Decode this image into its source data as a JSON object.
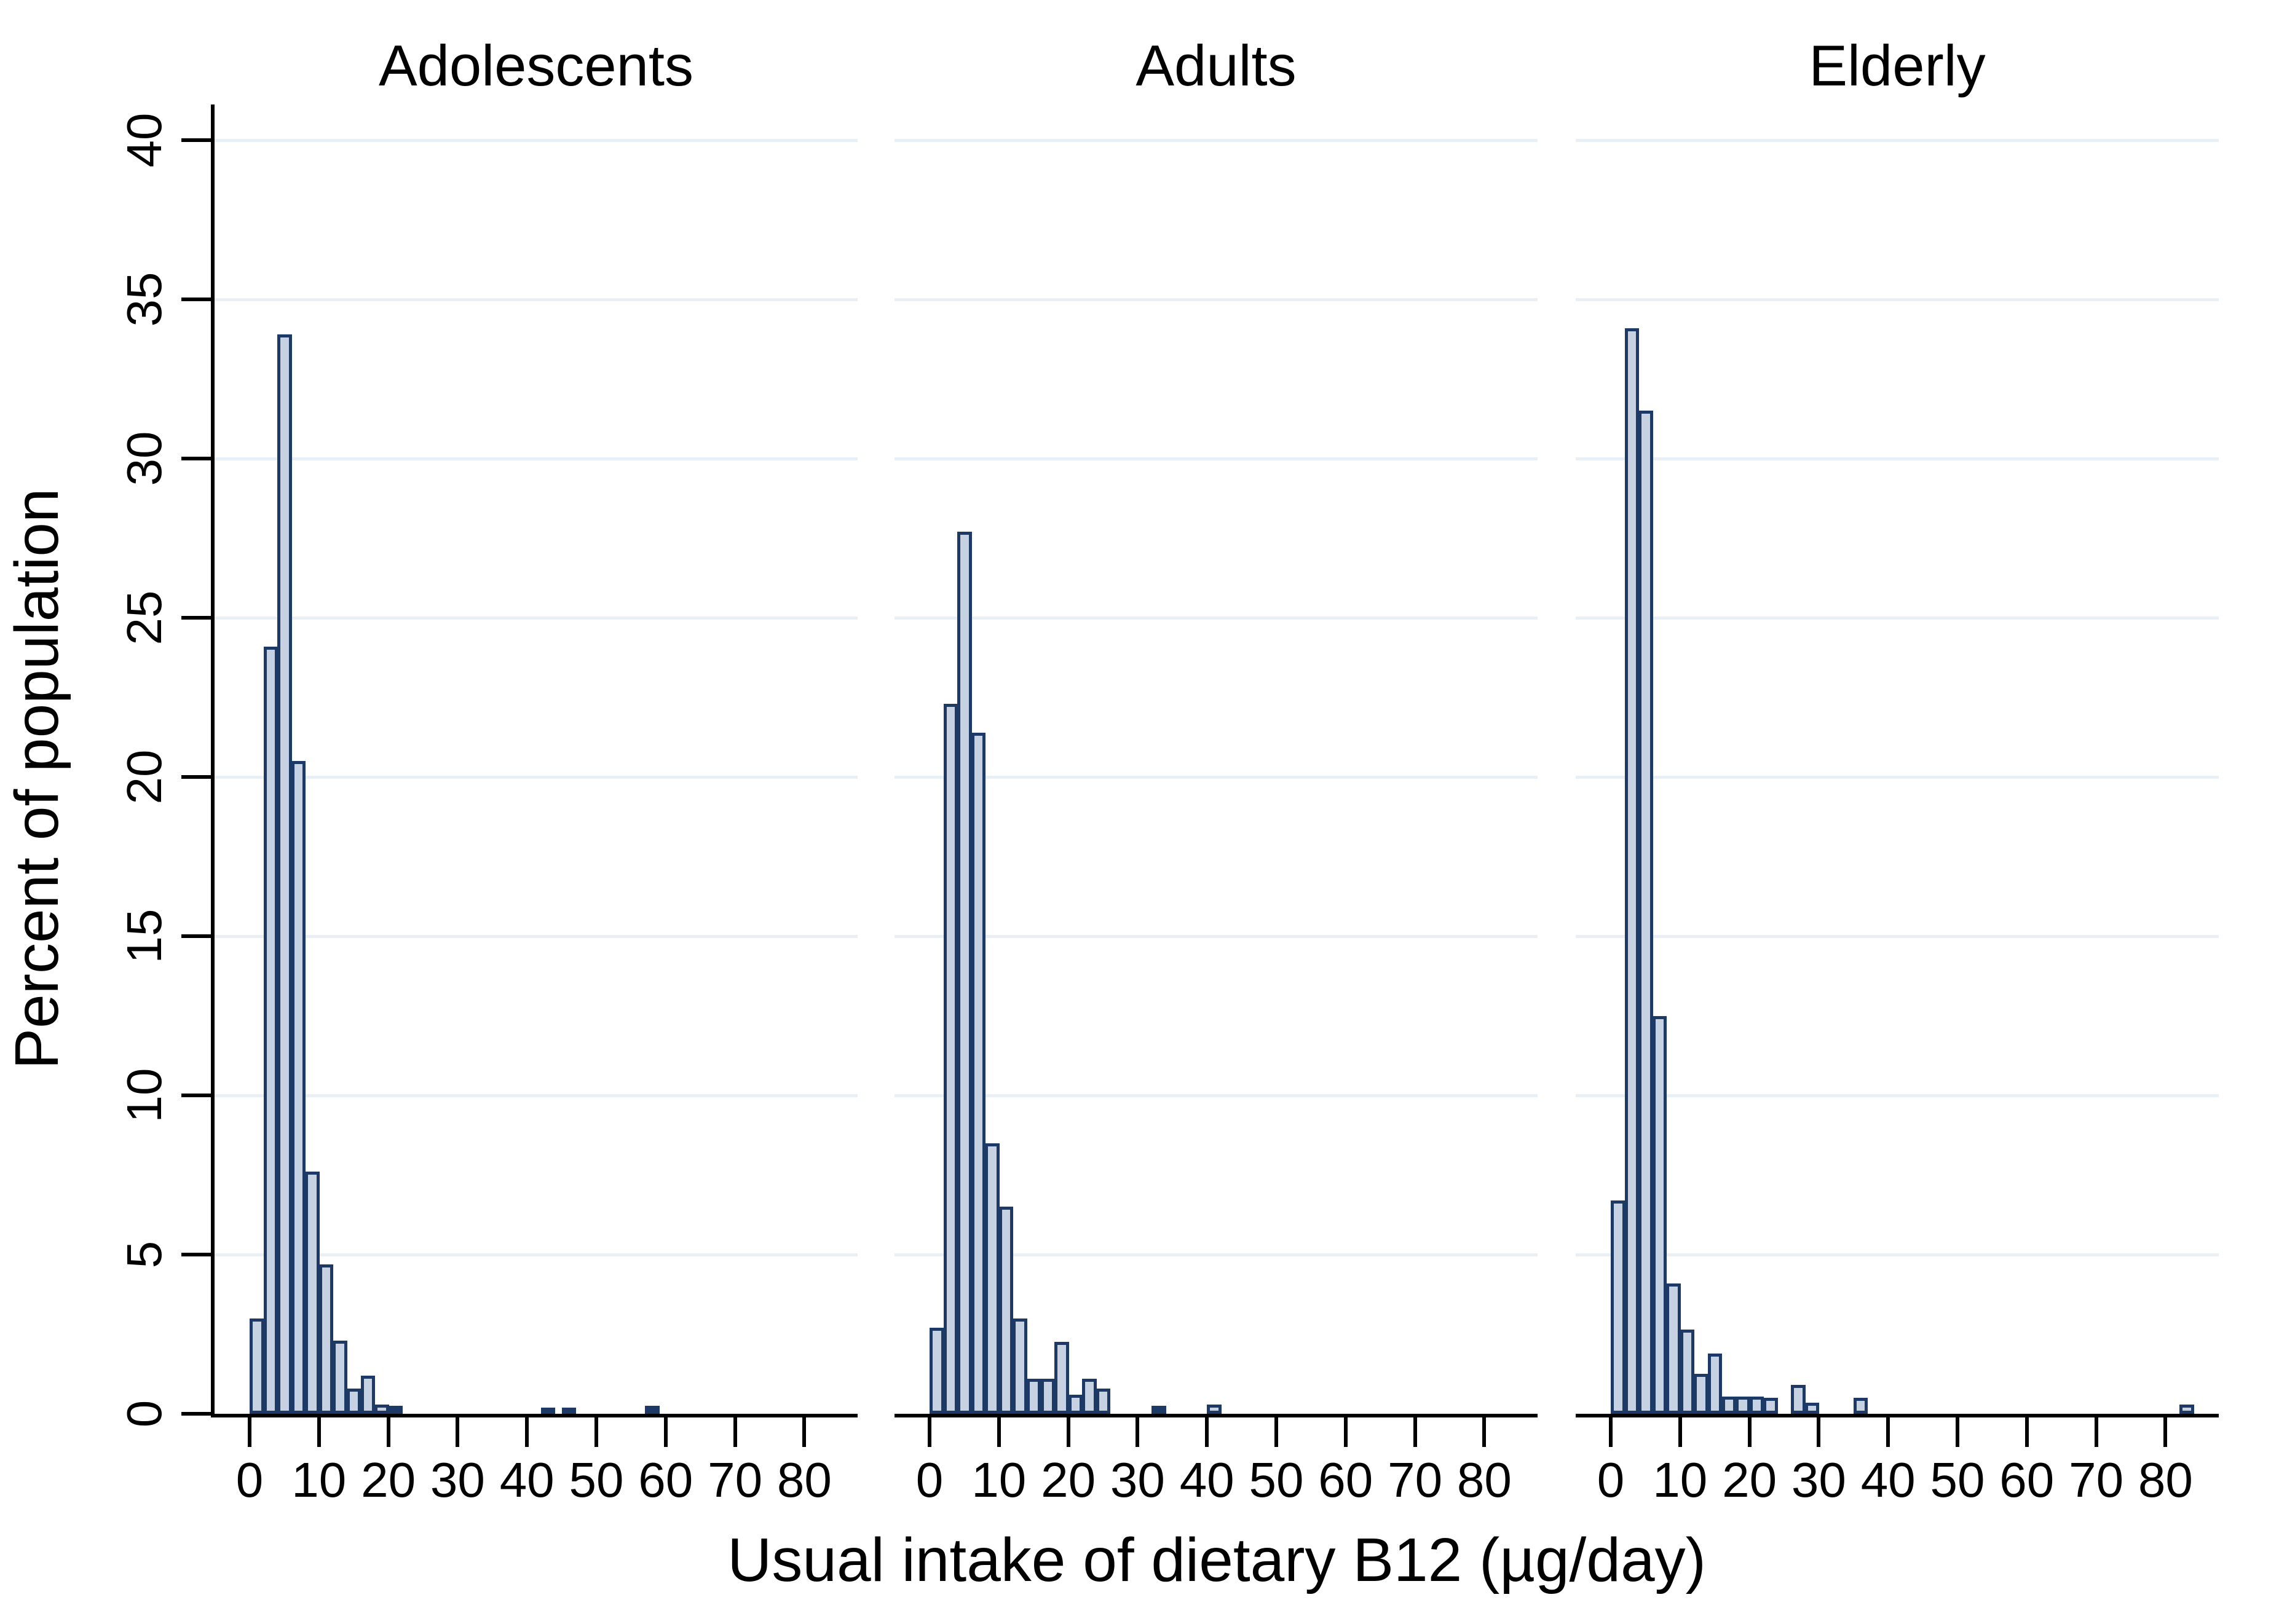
{
  "figure": {
    "background": "#ffffff"
  },
  "style": {
    "bar_fill": "#c6d2e2",
    "bar_border": "#1d3966",
    "grid_color": "#e9f0f5",
    "axis_color": "#000000",
    "text_color": "#000000"
  },
  "y_axis": {
    "title": "Percent of population",
    "ticks": [
      0,
      5,
      10,
      15,
      20,
      25,
      30,
      35,
      40
    ],
    "range": [
      0,
      40
    ],
    "tick_label_rotation": "rotated 90° (reads bottom-to-top)"
  },
  "x_axis": {
    "title": "Usual intake of dietary B12 (µg/day)",
    "ticks": [
      0,
      10,
      20,
      30,
      40,
      50,
      60,
      70,
      80
    ],
    "range": [
      -5,
      87.7
    ]
  },
  "chart_data": {
    "type": "bar",
    "subtype": "histogram-small-multiples",
    "bin_width": 2,
    "grid": true,
    "legend": "none",
    "ylabel": "Percent of population",
    "xlabel": "Usual intake of dietary B12 (µg/day)",
    "ylim": [
      0,
      40
    ],
    "xlim": [
      -5,
      88
    ],
    "panels": [
      {
        "title": "Adolescents",
        "bins": [
          [
            0,
            3.0
          ],
          [
            2,
            24.1
          ],
          [
            4,
            33.9
          ],
          [
            6,
            20.5
          ],
          [
            8,
            7.6
          ],
          [
            10,
            4.7
          ],
          [
            12,
            2.3
          ],
          [
            14,
            0.8
          ],
          [
            16,
            1.2
          ],
          [
            18,
            0.3
          ],
          [
            20,
            0.25
          ],
          [
            42,
            0.2
          ],
          [
            45,
            0.2
          ],
          [
            57,
            0.25
          ]
        ]
      },
      {
        "title": "Adults",
        "bins": [
          [
            0,
            2.7
          ],
          [
            2,
            22.3
          ],
          [
            4,
            27.7
          ],
          [
            6,
            21.4
          ],
          [
            8,
            8.5
          ],
          [
            10,
            6.5
          ],
          [
            12,
            3.0
          ],
          [
            14,
            1.1
          ],
          [
            16,
            1.1
          ],
          [
            18,
            2.25
          ],
          [
            20,
            0.6
          ],
          [
            22,
            1.1
          ],
          [
            24,
            0.8
          ],
          [
            32,
            0.25
          ],
          [
            40,
            0.3
          ]
        ]
      },
      {
        "title": "Elderly",
        "bins": [
          [
            0,
            6.7
          ],
          [
            2,
            34.1
          ],
          [
            4,
            31.5
          ],
          [
            6,
            12.5
          ],
          [
            8,
            4.1
          ],
          [
            10,
            2.65
          ],
          [
            12,
            1.25
          ],
          [
            14,
            1.9
          ],
          [
            16,
            0.55
          ],
          [
            18,
            0.55
          ],
          [
            20,
            0.55
          ],
          [
            22,
            0.5
          ],
          [
            26,
            0.9
          ],
          [
            28,
            0.35
          ],
          [
            35,
            0.5
          ],
          [
            82,
            0.3
          ]
        ]
      }
    ]
  }
}
